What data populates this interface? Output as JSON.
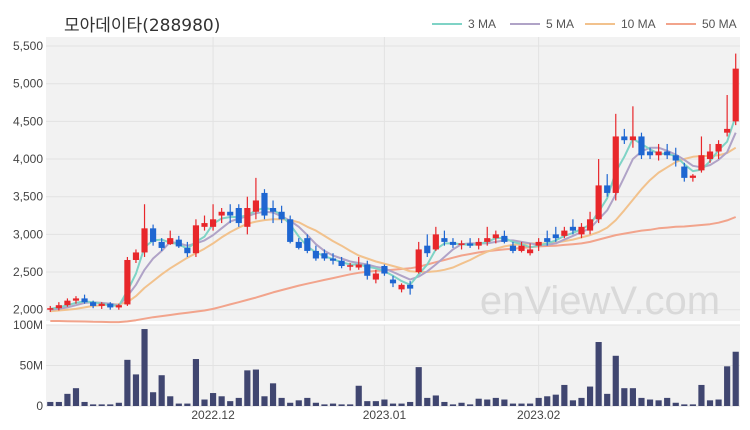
{
  "chart_data": {
    "type": "candlestick",
    "title": "모아데이타(288980)",
    "watermark": "enViewV.com",
    "legend": [
      {
        "name": "3 MA",
        "color": "#7fd3c6"
      },
      {
        "name": "5 MA",
        "color": "#b0a3c7"
      },
      {
        "name": "10 MA",
        "color": "#f2c28d"
      },
      {
        "name": "50 MA",
        "color": "#f2a48c"
      }
    ],
    "price_axis": {
      "ylim": [
        1850,
        5620
      ],
      "ticks": [
        "2,000",
        "2,500",
        "3,000",
        "3,500",
        "4,000",
        "4,500",
        "5,000",
        "5,500"
      ],
      "tick_values": [
        2000,
        2500,
        3000,
        3500,
        4000,
        4500,
        5000,
        5500
      ]
    },
    "volume_axis": {
      "ylim": [
        0,
        100
      ],
      "ticks": [
        "0",
        "50M",
        "100M"
      ],
      "tick_values": [
        0,
        50,
        100
      ]
    },
    "x_labels": [
      {
        "label": "2022.12",
        "index": 19
      },
      {
        "label": "2023.01",
        "index": 39
      },
      {
        "label": "2023.02",
        "index": 57
      }
    ],
    "colors": {
      "up": "#e8272b",
      "down": "#1e66d1",
      "volume": "#404670",
      "grid": "#e2e2e2",
      "plot_bg": "#f2f2f2"
    },
    "candles": [
      [
        2000,
        2050,
        1970,
        2020,
        5
      ],
      [
        2020,
        2100,
        1990,
        2060,
        5
      ],
      [
        2060,
        2150,
        2040,
        2120,
        15
      ],
      [
        2120,
        2180,
        2080,
        2150,
        22
      ],
      [
        2150,
        2200,
        2080,
        2100,
        5
      ],
      [
        2100,
        2120,
        2020,
        2050,
        2
      ],
      [
        2050,
        2100,
        2010,
        2080,
        2
      ],
      [
        2080,
        2100,
        2000,
        2030,
        2
      ],
      [
        2030,
        2080,
        2000,
        2060,
        4
      ],
      [
        2070,
        2700,
        2050,
        2660,
        57
      ],
      [
        2660,
        2800,
        2620,
        2760,
        39
      ],
      [
        2760,
        3400,
        2700,
        3080,
        95
      ],
      [
        3080,
        3130,
        2850,
        2900,
        17
      ],
      [
        2900,
        2950,
        2780,
        2820,
        38
      ],
      [
        2870,
        3050,
        2860,
        2950,
        12
      ],
      [
        2930,
        2980,
        2820,
        2840,
        3
      ],
      [
        2820,
        2900,
        2700,
        2750,
        3
      ],
      [
        2750,
        3200,
        2700,
        3120,
        58
      ],
      [
        3100,
        3250,
        3050,
        3150,
        8
      ],
      [
        3100,
        3400,
        3050,
        3200,
        16
      ],
      [
        3250,
        3350,
        3150,
        3300,
        12
      ],
      [
        3300,
        3400,
        3150,
        3250,
        6
      ],
      [
        3350,
        3400,
        3100,
        3150,
        10
      ],
      [
        3100,
        3500,
        3000,
        3350,
        44
      ],
      [
        3300,
        3750,
        3200,
        3450,
        45
      ],
      [
        3550,
        3600,
        3200,
        3250,
        12
      ],
      [
        3350,
        3450,
        3150,
        3300,
        28
      ],
      [
        3300,
        3380,
        3150,
        3200,
        10
      ],
      [
        3200,
        3250,
        2880,
        2900,
        4
      ],
      [
        2900,
        2950,
        2800,
        2820,
        7
      ],
      [
        2950,
        3000,
        2750,
        2780,
        10
      ],
      [
        2780,
        2850,
        2650,
        2680,
        4
      ],
      [
        2750,
        2800,
        2650,
        2680,
        2
      ],
      [
        2680,
        2750,
        2600,
        2650,
        3
      ],
      [
        2650,
        2700,
        2550,
        2580,
        2
      ],
      [
        2570,
        2620,
        2520,
        2590,
        2
      ],
      [
        2560,
        2700,
        2530,
        2600,
        25
      ],
      [
        2600,
        2650,
        2400,
        2450,
        6
      ],
      [
        2400,
        2530,
        2350,
        2480,
        6
      ],
      [
        2580,
        2600,
        2450,
        2480,
        8
      ],
      [
        2400,
        2450,
        2300,
        2350,
        3
      ],
      [
        2270,
        2350,
        2230,
        2330,
        3
      ],
      [
        2330,
        2380,
        2200,
        2280,
        5
      ],
      [
        2500,
        2900,
        2480,
        2800,
        48
      ],
      [
        2850,
        3000,
        2700,
        2750,
        10
      ],
      [
        2800,
        3100,
        2780,
        3000,
        13
      ],
      [
        2950,
        3050,
        2850,
        2900,
        5
      ],
      [
        2900,
        2950,
        2820,
        2860,
        2
      ],
      [
        2860,
        2920,
        2800,
        2880,
        4
      ],
      [
        2880,
        2950,
        2820,
        2850,
        2
      ],
      [
        2850,
        2950,
        2800,
        2900,
        9
      ],
      [
        2900,
        3100,
        2850,
        2950,
        8
      ],
      [
        2950,
        3050,
        2880,
        3000,
        10
      ],
      [
        2980,
        3050,
        2880,
        2900,
        8
      ],
      [
        2850,
        2900,
        2750,
        2780,
        3
      ],
      [
        2780,
        2900,
        2760,
        2850,
        3
      ],
      [
        2750,
        2880,
        2720,
        2800,
        3
      ],
      [
        2850,
        2950,
        2780,
        2900,
        10
      ],
      [
        2950,
        3050,
        2850,
        2900,
        12
      ],
      [
        3000,
        3100,
        2900,
        2950,
        14
      ],
      [
        2980,
        3100,
        2950,
        3050,
        26
      ],
      [
        3100,
        3200,
        3000,
        3050,
        7
      ],
      [
        3000,
        3150,
        2950,
        3100,
        10
      ],
      [
        3050,
        3300,
        3000,
        3200,
        24
      ],
      [
        3200,
        4000,
        3150,
        3650,
        79
      ],
      [
        3650,
        3800,
        3500,
        3550,
        15
      ],
      [
        3550,
        4600,
        3450,
        4300,
        62
      ],
      [
        4300,
        4400,
        4200,
        4250,
        22
      ],
      [
        4250,
        4700,
        4150,
        4300,
        22
      ],
      [
        4300,
        4350,
        4000,
        4050,
        10
      ],
      [
        4100,
        4150,
        4000,
        4050,
        8
      ],
      [
        4050,
        4200,
        3980,
        4100,
        7
      ],
      [
        4100,
        4200,
        4000,
        4050,
        10
      ],
      [
        4050,
        4150,
        3900,
        3980,
        4
      ],
      [
        3900,
        3950,
        3700,
        3750,
        2
      ],
      [
        3750,
        3800,
        3700,
        3780,
        2
      ],
      [
        3850,
        4300,
        3820,
        4050,
        26
      ],
      [
        4000,
        4200,
        3950,
        4100,
        7
      ],
      [
        4100,
        4250,
        4000,
        4200,
        8
      ],
      [
        4350,
        4850,
        4300,
        4400,
        49
      ],
      [
        4500,
        5400,
        4450,
        5200,
        67
      ]
    ],
    "ma3": [
      2010,
      2030,
      2060,
      2090,
      2110,
      2100,
      2080,
      2060,
      2050,
      2250,
      2480,
      2830,
      2920,
      2930,
      2890,
      2870,
      2810,
      2900,
      2970,
      3140,
      3210,
      3230,
      3230,
      3250,
      3320,
      3350,
      3330,
      3250,
      3130,
      2970,
      2840,
      2760,
      2710,
      2670,
      2630,
      2600,
      2600,
      2570,
      2550,
      2510,
      2450,
      2380,
      2330,
      2470,
      2600,
      2800,
      2880,
      2880,
      2870,
      2860,
      2870,
      2900,
      2950,
      2950,
      2900,
      2870,
      2830,
      2850,
      2880,
      2920,
      2980,
      3020,
      3070,
      3130,
      3300,
      3480,
      3830,
      4030,
      4270,
      4200,
      4130,
      4070,
      4070,
      4040,
      3930,
      3840,
      3860,
      3970,
      4120,
      4230,
      4570
    ],
    "ma5": [
      2000,
      2010,
      2030,
      2060,
      2090,
      2100,
      2090,
      2080,
      2060,
      2180,
      2330,
      2530,
      2680,
      2780,
      2900,
      2880,
      2850,
      2880,
      2920,
      2990,
      3080,
      3170,
      3210,
      3240,
      3280,
      3300,
      3290,
      3240,
      3180,
      3100,
      2990,
      2870,
      2780,
      2720,
      2680,
      2640,
      2620,
      2600,
      2570,
      2550,
      2500,
      2450,
      2400,
      2440,
      2510,
      2600,
      2700,
      2800,
      2870,
      2880,
      2880,
      2880,
      2900,
      2920,
      2920,
      2900,
      2880,
      2860,
      2860,
      2880,
      2930,
      2980,
      3030,
      3080,
      3200,
      3320,
      3530,
      3760,
      4000,
      4100,
      4150,
      4150,
      4110,
      4060,
      3990,
      3910,
      3890,
      3920,
      3990,
      4090,
      4350
    ],
    "ma10": [
      1980,
      1990,
      2000,
      2010,
      2030,
      2050,
      2060,
      2070,
      2070,
      2100,
      2180,
      2290,
      2380,
      2470,
      2550,
      2620,
      2690,
      2750,
      2810,
      2880,
      2960,
      3030,
      3090,
      3140,
      3170,
      3190,
      3200,
      3200,
      3190,
      3160,
      3100,
      3050,
      2980,
      2910,
      2850,
      2780,
      2720,
      2680,
      2640,
      2610,
      2580,
      2550,
      2510,
      2500,
      2500,
      2510,
      2530,
      2560,
      2610,
      2660,
      2720,
      2770,
      2810,
      2840,
      2860,
      2870,
      2880,
      2880,
      2880,
      2890,
      2910,
      2930,
      2960,
      2990,
      3030,
      3090,
      3190,
      3320,
      3460,
      3600,
      3720,
      3820,
      3890,
      3960,
      4000,
      4030,
      4040,
      4040,
      4050,
      4080,
      4150
    ],
    "ma50": [
      1850,
      1850,
      1848,
      1845,
      1843,
      1840,
      1838,
      1836,
      1835,
      1845,
      1860,
      1880,
      1900,
      1915,
      1930,
      1945,
      1960,
      1975,
      1990,
      2010,
      2040,
      2070,
      2100,
      2130,
      2160,
      2195,
      2230,
      2260,
      2290,
      2320,
      2345,
      2370,
      2395,
      2420,
      2445,
      2470,
      2490,
      2505,
      2515,
      2520,
      2530,
      2540,
      2550,
      2570,
      2600,
      2630,
      2660,
      2690,
      2720,
      2740,
      2760,
      2775,
      2790,
      2800,
      2810,
      2820,
      2830,
      2840,
      2845,
      2850,
      2860,
      2870,
      2880,
      2900,
      2930,
      2960,
      2990,
      3010,
      3030,
      3050,
      3060,
      3080,
      3090,
      3100,
      3105,
      3115,
      3125,
      3135,
      3155,
      3185,
      3230
    ]
  }
}
